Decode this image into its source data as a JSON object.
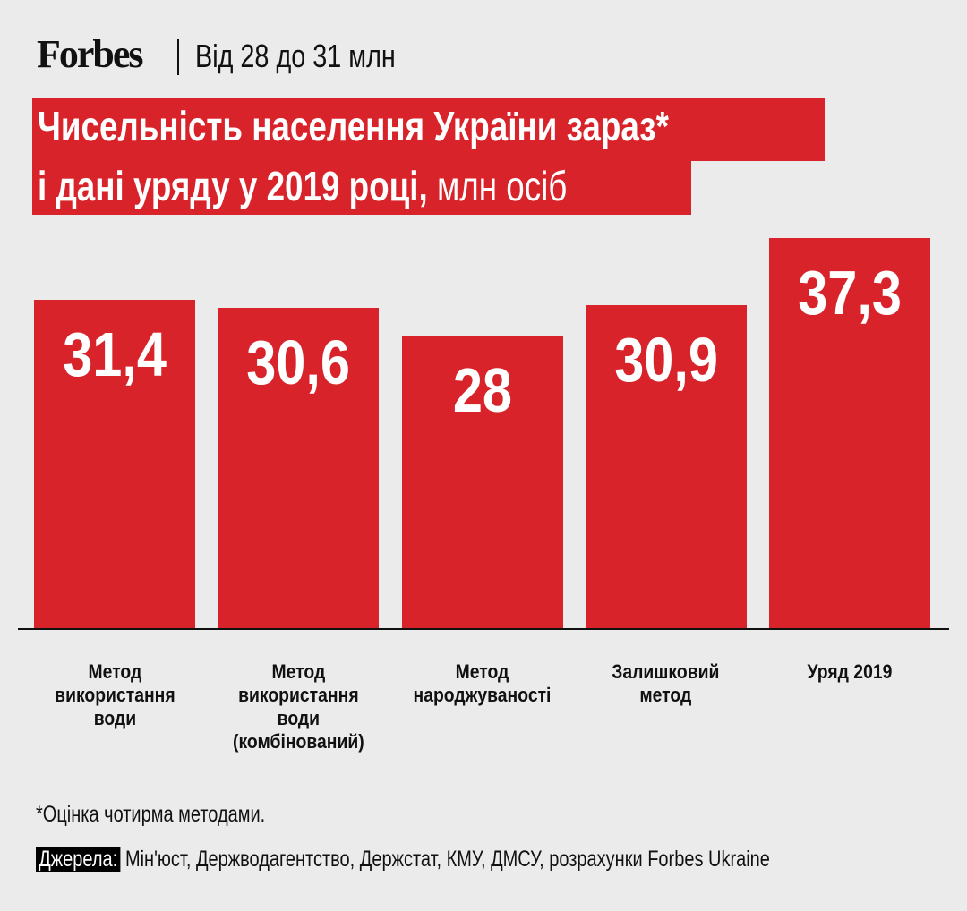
{
  "header": {
    "logo": "Forbes",
    "subtitle": "Від 28 до 31 млн"
  },
  "colors": {
    "bar": "#d9232a",
    "background": "#ebebeb",
    "text": "#111111"
  },
  "chart_data": {
    "type": "bar",
    "title_line1": "Чисельність населення України зараз*",
    "title_line2": "і дані уряду у 2019 році,",
    "title_unit": "млн осіб",
    "categories": [
      "Метод\nвикористання\nводи",
      "Метод\nвикористання\nводи\n(комбінований)",
      "Метод\nнароджуваності",
      "Залишковий\nметод",
      "Уряд 2019"
    ],
    "values": [
      31.4,
      30.6,
      28,
      30.9,
      37.3
    ],
    "value_labels": [
      "31,4",
      "30,6",
      "28",
      "30,9",
      "37,3"
    ],
    "ylim": [
      0,
      37.3
    ],
    "grid": false
  },
  "footer": {
    "footnote": "*Оцінка чотирма методами.",
    "sources_label": "Джерела:",
    "sources": "Мін'юст, Держводагентство, Держстат, КМУ, ДМСУ, розрахунки Forbes Ukraine"
  }
}
